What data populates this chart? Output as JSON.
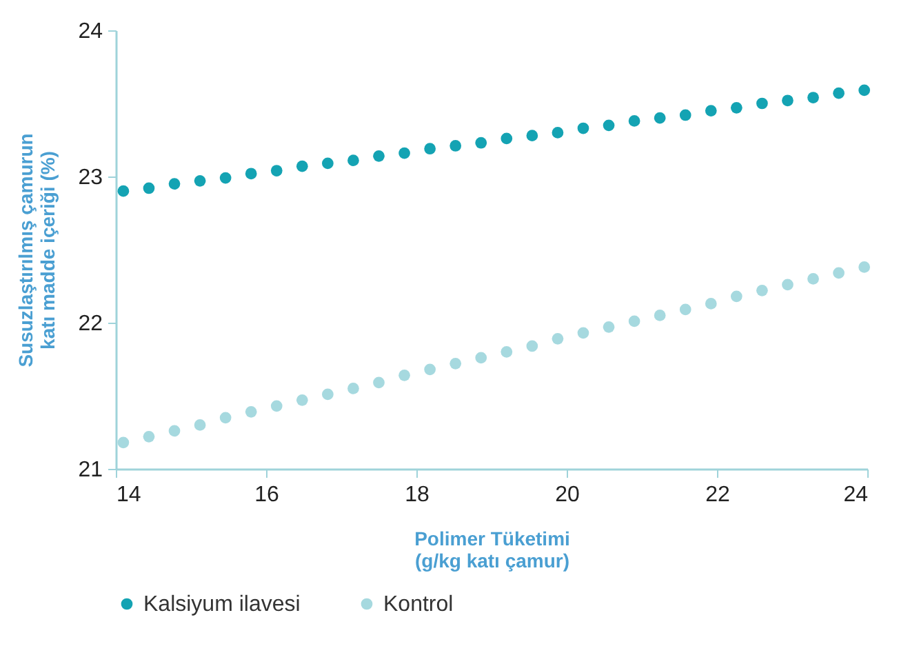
{
  "chart_data": {
    "type": "scatter",
    "xlabel": "Polimer Tüketimi\n(g/kg katı çamur)",
    "ylabel": "Susuzlaştırılmış çamurun\nkatı madde içeriği (%)",
    "x": [
      14.1,
      14.44,
      14.78,
      15.12,
      15.46,
      15.8,
      16.14,
      16.48,
      16.82,
      17.16,
      17.5,
      17.84,
      18.18,
      18.52,
      18.86,
      19.2,
      19.54,
      19.88,
      20.22,
      20.56,
      20.9,
      21.24,
      21.58,
      21.92,
      22.26,
      22.6,
      22.94,
      23.28,
      23.62,
      23.96
    ],
    "series": [
      {
        "name": "Kalsiyum ilavesi",
        "color": "#14a3b3",
        "values": [
          22.9,
          22.92,
          22.95,
          22.97,
          22.99,
          23.02,
          23.04,
          23.07,
          23.09,
          23.11,
          23.14,
          23.16,
          23.19,
          23.21,
          23.23,
          23.26,
          23.28,
          23.3,
          23.33,
          23.35,
          23.38,
          23.4,
          23.42,
          23.45,
          23.47,
          23.5,
          23.52,
          23.54,
          23.57,
          23.59
        ]
      },
      {
        "name": "Kontrol",
        "color": "#a6d9df",
        "values": [
          21.18,
          21.22,
          21.26,
          21.3,
          21.35,
          21.39,
          21.43,
          21.47,
          21.51,
          21.55,
          21.59,
          21.64,
          21.68,
          21.72,
          21.76,
          21.8,
          21.84,
          21.89,
          21.93,
          21.97,
          22.01,
          22.05,
          22.09,
          22.13,
          22.18,
          22.22,
          22.26,
          22.3,
          22.34,
          22.38
        ]
      }
    ],
    "xlim": [
      14,
      24
    ],
    "xticks": [
      14,
      16,
      18,
      20,
      22,
      24
    ],
    "ylim": [
      21,
      24
    ],
    "yticks": [
      21,
      22,
      23,
      24
    ],
    "marker": "circle",
    "legend": "bottom",
    "grid": false
  }
}
